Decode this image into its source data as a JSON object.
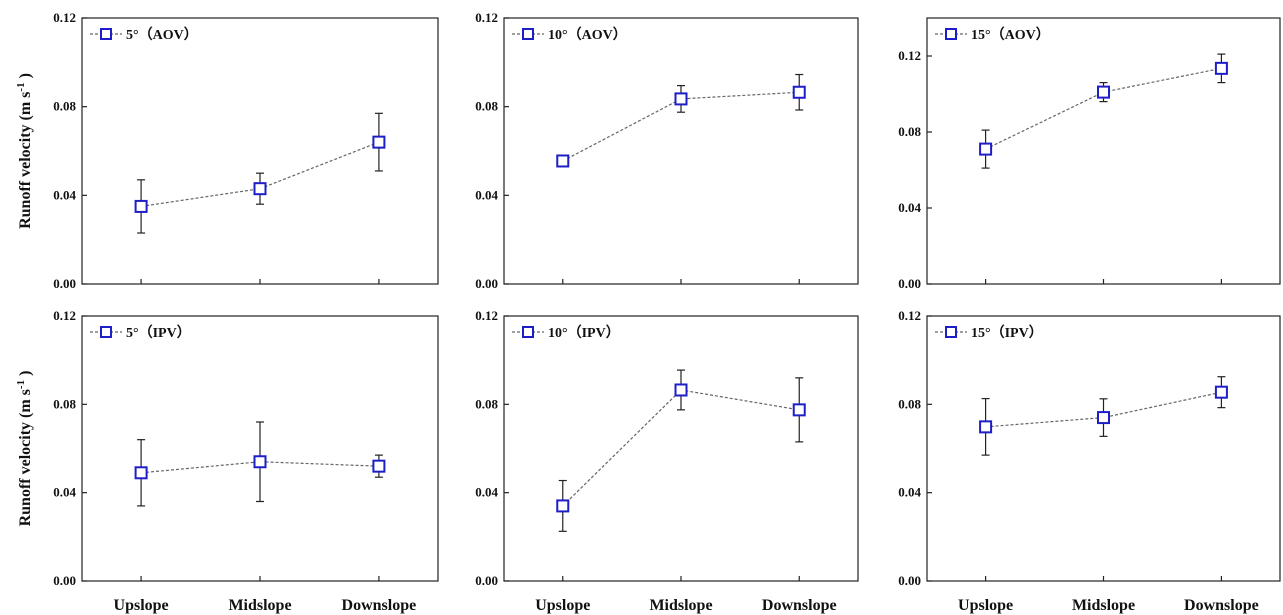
{
  "colors": {
    "marker": "#1e1ec8",
    "line": "#666666",
    "axis": "#222222"
  },
  "chart_data": [
    {
      "type": "line",
      "legend": "5°（AOV）",
      "categories": [
        "Upslope",
        "Midslope",
        "Downslope"
      ],
      "values": [
        0.035,
        0.043,
        0.064
      ],
      "errors": [
        0.012,
        0.007,
        0.013
      ],
      "ylim": [
        0,
        0.12
      ],
      "yticks": [
        "0.00",
        "0.04",
        "0.08",
        "0.12"
      ],
      "ylabel": "Runoff velocity (m s-1)",
      "legend_position": "top-left"
    },
    {
      "type": "line",
      "legend": "10°（AOV）",
      "categories": [
        "Upslope",
        "Midslope",
        "Downslope"
      ],
      "values": [
        0.0555,
        0.0835,
        0.0865
      ],
      "errors": [
        0.0,
        0.006,
        0.008
      ],
      "ylim": [
        0,
        0.12
      ],
      "yticks": [
        "0.00",
        "0.04",
        "0.08",
        "0.12"
      ],
      "legend_position": "top-left"
    },
    {
      "type": "line",
      "legend": "15°（AOV）",
      "categories": [
        "Upslope",
        "Midslope",
        "Downslope"
      ],
      "values": [
        0.071,
        0.101,
        0.1135
      ],
      "errors": [
        0.01,
        0.005,
        0.0075
      ],
      "ylim": [
        0,
        0.14
      ],
      "yticks": [
        "0.00",
        "0.04",
        "0.08",
        "0.12"
      ],
      "legend_position": "top-left"
    },
    {
      "type": "line",
      "legend": "5°（IPV）",
      "categories": [
        "Upslope",
        "Midslope",
        "Downslope"
      ],
      "values": [
        0.049,
        0.054,
        0.052
      ],
      "errors": [
        0.015,
        0.018,
        0.005
      ],
      "ylim": [
        0,
        0.12
      ],
      "yticks": [
        "0.00",
        "0.04",
        "0.08",
        "0.12"
      ],
      "ylabel": "Runoff velocity (m s-1)",
      "xlabel_categories_shown": true,
      "legend_position": "top-left"
    },
    {
      "type": "line",
      "legend": "10°（IPV）",
      "categories": [
        "Upslope",
        "Midslope",
        "Downslope"
      ],
      "values": [
        0.034,
        0.0865,
        0.0775
      ],
      "errors": [
        0.0115,
        0.009,
        0.0145
      ],
      "ylim": [
        0,
        0.12
      ],
      "yticks": [
        "0.00",
        "0.04",
        "0.08",
        "0.12"
      ],
      "xlabel_categories_shown": true,
      "legend_position": "top-left"
    },
    {
      "type": "line",
      "legend": "15°（IPV）",
      "categories": [
        "Upslope",
        "Midslope",
        "Downslope"
      ],
      "values": [
        0.0698,
        0.074,
        0.0855
      ],
      "errors": [
        0.0128,
        0.0085,
        0.007
      ],
      "ylim": [
        0,
        0.12
      ],
      "yticks": [
        "0.00",
        "0.04",
        "0.08",
        "0.12"
      ],
      "xlabel_categories_shown": true,
      "legend_position": "top-left"
    }
  ]
}
